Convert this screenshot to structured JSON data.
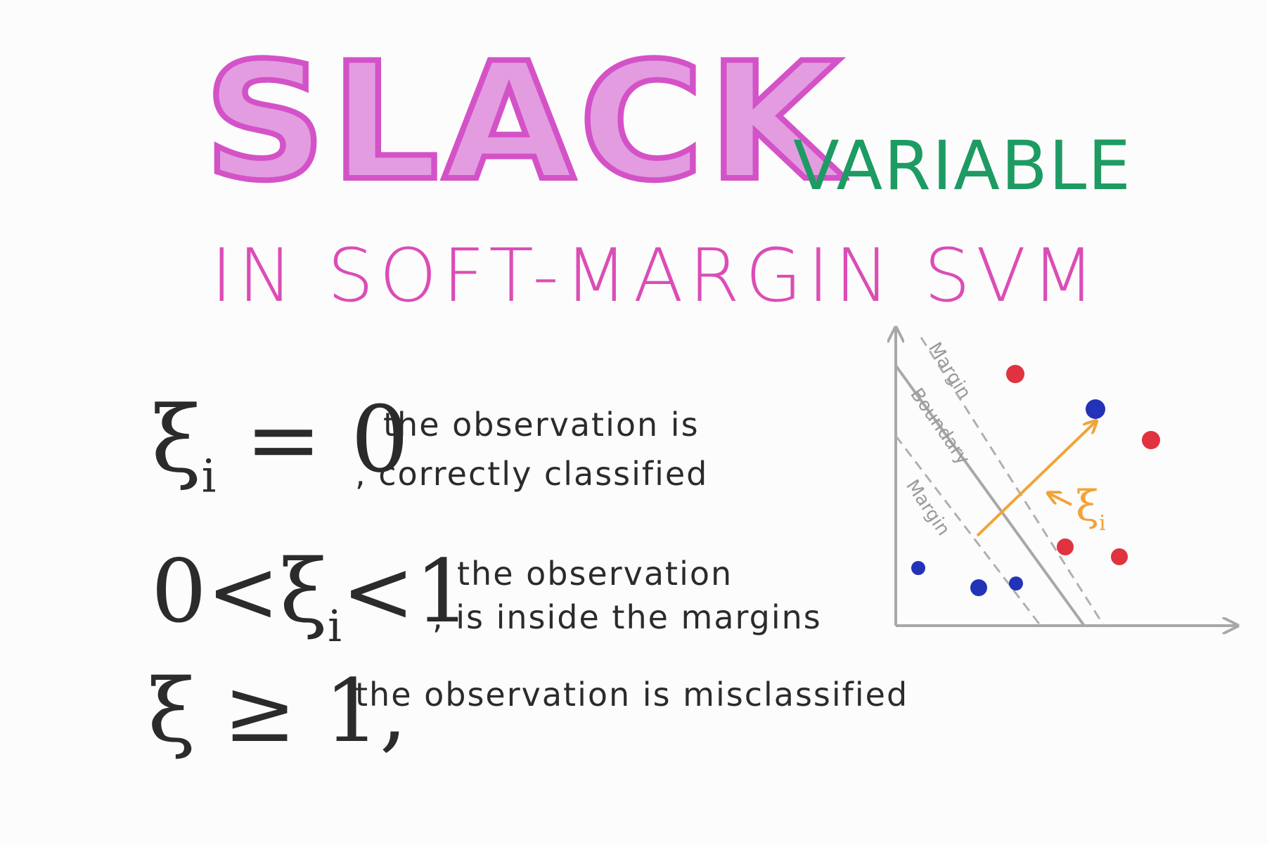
{
  "title": {
    "main": "SLACK",
    "suffix": "VARIABLE",
    "subtitle": "IN SOFT-MARGIN SVM"
  },
  "rules": [
    {
      "formula_main": "ξ",
      "formula_sub": "i",
      "formula_rest": "= 0",
      "line1": "the observation is",
      "line2": ", correctly classified"
    },
    {
      "formula_main": "0<ξ",
      "formula_sub": "i",
      "formula_rest": "<1",
      "line1": "the observation",
      "line2": ", is inside the margins"
    },
    {
      "formula_main": "ξ ≥ 1",
      "formula_sub": "",
      "formula_rest": ",",
      "line1": "the observation is misclassified",
      "line2": ""
    }
  ],
  "diagram": {
    "label_margin_top": "Margin",
    "label_boundary": "Boundary",
    "label_margin_bottom": "Margin",
    "xi_symbol": "ξ",
    "xi_sub": "i",
    "colors": {
      "axis": "#a8a8a8",
      "red_class": "#e0323f",
      "blue_class": "#2233b8",
      "slack_arrow": "#f3a338"
    }
  }
}
